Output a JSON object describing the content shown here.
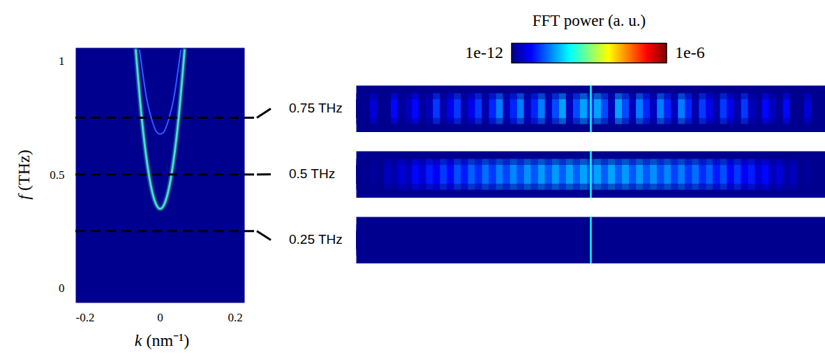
{
  "chart_data": [
    {
      "type": "line",
      "x_label": "k (nm⁻¹)",
      "y_label": "f (THz)",
      "xlim": [
        -0.225,
        0.225
      ],
      "xticks": [
        -0.2,
        0,
        0.2
      ],
      "ylim": [
        -0.065,
        1.06
      ],
      "yticks": [
        0,
        0.5,
        1
      ],
      "series": [
        {
          "color": "#45e0c0",
          "x": [
            -0.065,
            -0.06,
            -0.05,
            -0.04,
            -0.03,
            -0.02,
            -0.01,
            0,
            0.01,
            0.02,
            0.03,
            0.04,
            0.05,
            0.06,
            0.065
          ],
          "values": [
            1.05,
            0.95,
            0.765,
            0.616,
            0.5,
            0.416,
            0.367,
            0.35,
            0.367,
            0.416,
            0.5,
            0.616,
            0.765,
            0.95,
            1.05
          ]
        },
        {
          "color": "#2f5cff",
          "x": [
            -0.055,
            -0.04,
            -0.03,
            -0.02,
            -0.01,
            0,
            0.01,
            0.02,
            0.03,
            0.04,
            0.055
          ],
          "values": [
            1.05,
            0.875,
            0.79,
            0.73,
            0.69,
            0.68,
            0.69,
            0.73,
            0.79,
            0.875,
            1.05
          ]
        }
      ],
      "cuts": {
        "values": [
          0.75,
          0.5,
          0.25
        ],
        "line_style": "dashed"
      }
    },
    {
      "type": "heatmap",
      "title": "FFT power (a. u.)",
      "tick_labels": false,
      "xlim": [
        -33.5,
        33.5
      ],
      "x": [
        -33,
        -32,
        -31,
        -30,
        -29,
        -28,
        -27,
        -26,
        -25,
        -24,
        -23,
        -22,
        -21,
        -20,
        -19,
        -18,
        -17,
        -16,
        -15,
        -14,
        -13,
        -12,
        -11,
        -10,
        -9,
        -8,
        -7,
        -6,
        -5,
        -4,
        -3,
        -2,
        -1,
        0,
        1,
        2,
        3,
        4,
        5,
        6,
        7,
        8,
        9,
        10,
        11,
        12,
        13,
        14,
        15,
        16,
        17,
        18,
        19,
        20,
        21,
        22,
        23,
        24,
        25,
        26,
        27,
        28,
        29,
        30,
        31,
        32,
        33
      ],
      "source_x": 0,
      "series": [
        {
          "name": "0.75 THz",
          "source_value": 2e-10,
          "values": [
            1e-12,
            1e-12,
            3e-12,
            1e-12,
            1e-12,
            6e-12,
            1.2e-12,
            2e-12,
            6e-12,
            1.2e-12,
            2e-12,
            1.2e-11,
            1.5e-12,
            4e-12,
            1.2e-11,
            1.5e-12,
            4e-12,
            1.2e-11,
            1.5e-12,
            9e-12,
            3e-11,
            2e-12,
            9e-12,
            3e-11,
            2e-12,
            9e-12,
            3e-11,
            2e-12,
            1.5e-11,
            5e-11,
            2e-12,
            1.5e-11,
            5e-11,
            1e-11,
            5e-11,
            1.5e-11,
            2e-12,
            5e-11,
            1.5e-11,
            2e-12,
            3e-11,
            9e-12,
            2e-12,
            3e-11,
            9e-12,
            2e-12,
            3e-11,
            9e-12,
            1.5e-12,
            1.2e-11,
            4e-12,
            1.5e-12,
            1.2e-11,
            4e-12,
            1.5e-12,
            1.2e-11,
            2e-12,
            1.2e-12,
            6e-12,
            2e-12,
            1.2e-12,
            6e-12,
            1e-12,
            1e-12,
            3e-12,
            1e-12,
            1e-12
          ]
        },
        {
          "name": "0.5 THz",
          "source_value": 2e-10,
          "values": [
            1e-12,
            1e-12,
            1.2e-12,
            1e-12,
            2e-12,
            1.5e-12,
            3e-12,
            2e-12,
            6e-12,
            3e-12,
            8e-12,
            5e-12,
            1.2e-11,
            6e-12,
            1.6e-11,
            8e-12,
            2e-11,
            1e-11,
            2.5e-11,
            1.2e-11,
            3e-11,
            1.4e-11,
            3.5e-11,
            1.6e-11,
            4e-11,
            1.8e-11,
            4.5e-11,
            1.8e-11,
            4.5e-11,
            2e-11,
            5e-11,
            2e-11,
            5e-11,
            2e-11,
            5e-11,
            2e-11,
            5e-11,
            2e-11,
            4.5e-11,
            1.8e-11,
            4.5e-11,
            1.8e-11,
            4e-11,
            1.6e-11,
            3.5e-11,
            1.4e-11,
            3e-11,
            1.2e-11,
            2.5e-11,
            1e-11,
            2e-11,
            8e-12,
            1.6e-11,
            6e-12,
            1.2e-11,
            5e-12,
            8e-12,
            3e-12,
            6e-12,
            2e-12,
            3e-12,
            1.5e-12,
            2e-12,
            1e-12,
            1.2e-12,
            1e-12,
            1e-12
          ]
        },
        {
          "name": "0.25 THz",
          "source_value": 2e-10,
          "values": [
            1e-12,
            1e-12,
            1e-12,
            1e-12,
            1e-12,
            1e-12,
            1e-12,
            1e-12,
            1e-12,
            1e-12,
            1e-12,
            1e-12,
            1e-12,
            1e-12,
            1e-12,
            1e-12,
            1e-12,
            1e-12,
            1e-12,
            1e-12,
            1e-12,
            1e-12,
            1e-12,
            1e-12,
            1e-12,
            1e-12,
            1e-12,
            1e-12,
            1e-12,
            1e-12,
            1e-12,
            1e-12,
            1e-12,
            1e-12,
            1e-12,
            1e-12,
            1e-12,
            1e-12,
            1e-12,
            1e-12,
            1e-12,
            1e-12,
            1e-12,
            1e-12,
            1e-12,
            1e-12,
            1e-12,
            1e-12,
            1e-12,
            1e-12,
            1e-12,
            1e-12,
            1e-12,
            1e-12,
            1e-12,
            1e-12,
            1e-12,
            1e-12,
            1e-12,
            1e-12,
            1e-12,
            1e-12,
            1e-12,
            1e-12,
            1e-12,
            1e-12,
            1e-12
          ]
        }
      ],
      "colorbar": {
        "range": [
          1e-12,
          1e-06
        ],
        "log": true,
        "ticks": [
          {
            "value": 1e-12,
            "label": "1e-12"
          },
          {
            "value": 1e-06,
            "label": "1e-6"
          }
        ]
      }
    }
  ]
}
